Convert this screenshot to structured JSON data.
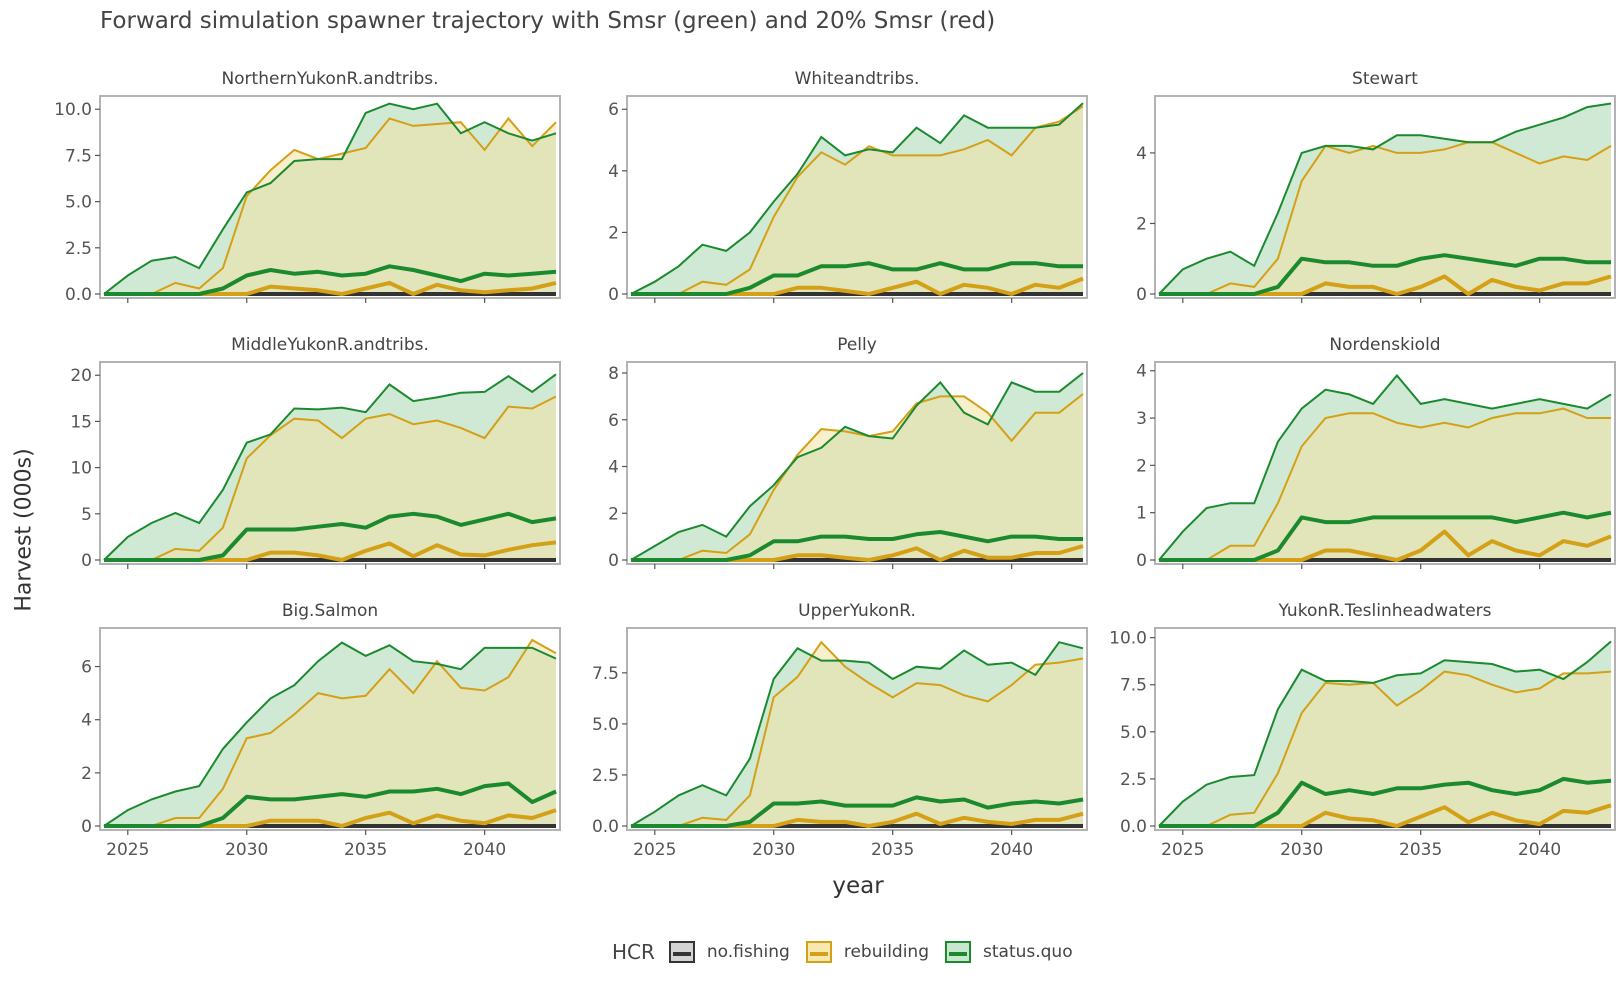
{
  "chart_data": {
    "type": "area",
    "title": "Forward simulation spawner trajectory with Smsr (green) and 20% Smsr (red)",
    "xlabel": "year",
    "ylabel": "Harvest (000s)",
    "x": [
      2024,
      2025,
      2026,
      2027,
      2028,
      2029,
      2030,
      2031,
      2032,
      2033,
      2034,
      2035,
      2036,
      2037,
      2038,
      2039,
      2040,
      2041,
      2042,
      2043
    ],
    "xticks": [
      2025,
      2030,
      2035,
      2040
    ],
    "xlim": [
      2024,
      2043
    ],
    "legend": {
      "title": "HCR",
      "position": "bottom",
      "items": [
        {
          "label": "no.fishing",
          "color": "#333333",
          "fill": "#d3d3d3"
        },
        {
          "label": "rebuilding",
          "color": "#d4a017",
          "fill": "#f7e7b0"
        },
        {
          "label": "status.quo",
          "color": "#1b8a2f",
          "fill": "#c9e6cf"
        }
      ]
    },
    "colors": {
      "no_fishing": "#333333",
      "rebuilding": "#d4a017",
      "status_quo": "#1b8a2f",
      "rebuilding_fill": "#f3e2a4",
      "status_quo_fill": "#bfe1c6",
      "panel_border": "#b3b3b3"
    },
    "panels": [
      {
        "name": "NorthernYukonR.andtribs.",
        "ylim": [
          0,
          10.5
        ],
        "yticks": [
          "0.0",
          "2.5",
          "5.0",
          "7.5",
          "10.0"
        ],
        "ytick_values": [
          0,
          2.5,
          5,
          7.5,
          10
        ],
        "status_quo_upper": [
          0,
          1,
          1.8,
          2,
          1.4,
          3.5,
          5.5,
          6,
          7.2,
          7.3,
          7.3,
          9.8,
          10.3,
          10,
          10.3,
          8.7,
          9.3,
          8.7,
          8.3,
          8.7
        ],
        "rebuilding_upper": [
          0,
          0,
          0,
          0.6,
          0.3,
          1.4,
          5.3,
          6.7,
          7.8,
          7.3,
          7.6,
          7.9,
          9.5,
          9.1,
          9.2,
          9.3,
          7.8,
          9.5,
          8,
          9.3
        ],
        "status_quo_median": [
          0,
          0,
          0,
          0,
          0,
          0.3,
          1,
          1.3,
          1.1,
          1.2,
          1,
          1.1,
          1.5,
          1.3,
          1,
          0.7,
          1.1,
          1,
          1.1,
          1.2
        ],
        "rebuilding_median": [
          0,
          0,
          0,
          0,
          0,
          0,
          0,
          0.4,
          0.3,
          0.2,
          0,
          0.3,
          0.6,
          0,
          0.5,
          0.2,
          0.1,
          0.2,
          0.3,
          0.6
        ]
      },
      {
        "name": "Whiteandtribs.",
        "ylim": [
          0,
          6.3
        ],
        "yticks": [
          "0",
          "2",
          "4",
          "6"
        ],
        "ytick_values": [
          0,
          2,
          4,
          6
        ],
        "status_quo_upper": [
          0,
          0.4,
          0.9,
          1.6,
          1.4,
          2,
          3,
          3.9,
          5.1,
          4.5,
          4.7,
          4.6,
          5.4,
          4.9,
          5.8,
          5.4,
          5.4,
          5.4,
          5.5,
          6.2
        ],
        "rebuilding_upper": [
          0,
          0,
          0,
          0.4,
          0.3,
          0.8,
          2.5,
          3.8,
          4.6,
          4.2,
          4.8,
          4.5,
          4.5,
          4.5,
          4.7,
          5,
          4.5,
          5.4,
          5.6,
          6.1
        ],
        "status_quo_median": [
          0,
          0,
          0,
          0,
          0,
          0.2,
          0.6,
          0.6,
          0.9,
          0.9,
          1,
          0.8,
          0.8,
          1,
          0.8,
          0.8,
          1,
          1,
          0.9,
          0.9
        ],
        "rebuilding_median": [
          0,
          0,
          0,
          0,
          0,
          0,
          0,
          0.2,
          0.2,
          0.1,
          0,
          0.2,
          0.4,
          0,
          0.3,
          0.2,
          0,
          0.3,
          0.2,
          0.5
        ]
      },
      {
        "name": "Stewart",
        "ylim": [
          0,
          5.5
        ],
        "yticks": [
          "0",
          "2",
          "4"
        ],
        "ytick_values": [
          0,
          2,
          4
        ],
        "status_quo_upper": [
          0,
          0.7,
          1,
          1.2,
          0.8,
          2.3,
          4,
          4.2,
          4.2,
          4.1,
          4.5,
          4.5,
          4.4,
          4.3,
          4.3,
          4.6,
          4.8,
          5,
          5.3,
          5.4
        ],
        "rebuilding_upper": [
          0,
          0,
          0,
          0.3,
          0.2,
          1,
          3.2,
          4.2,
          4,
          4.2,
          4,
          4,
          4.1,
          4.3,
          4.3,
          4,
          3.7,
          3.9,
          3.8,
          4.2
        ],
        "status_quo_median": [
          0,
          0,
          0,
          0,
          0,
          0.2,
          1,
          0.9,
          0.9,
          0.8,
          0.8,
          1,
          1.1,
          1,
          0.9,
          0.8,
          1,
          1,
          0.9,
          0.9
        ],
        "rebuilding_median": [
          0,
          0,
          0,
          0,
          0,
          0,
          0,
          0.3,
          0.2,
          0.2,
          0,
          0.2,
          0.5,
          0,
          0.4,
          0.2,
          0.1,
          0.3,
          0.3,
          0.5
        ]
      },
      {
        "name": "MiddleYukonR.andtribs.",
        "ylim": [
          0,
          21
        ],
        "yticks": [
          "0",
          "5",
          "10",
          "15",
          "20"
        ],
        "ytick_values": [
          0,
          5,
          10,
          15,
          20
        ],
        "status_quo_upper": [
          0,
          2.5,
          4,
          5.1,
          4,
          7.6,
          12.7,
          13.6,
          16.4,
          16.3,
          16.5,
          16,
          19,
          17.2,
          17.6,
          18.1,
          18.2,
          19.9,
          18.2,
          20.1
        ],
        "rebuilding_upper": [
          0,
          0,
          0,
          1.2,
          1,
          3.5,
          11,
          13.5,
          15.3,
          15.1,
          13.2,
          15.3,
          15.8,
          14.7,
          15.1,
          14.3,
          13.2,
          16.6,
          16.4,
          17.7
        ],
        "status_quo_median": [
          0,
          0,
          0,
          0,
          0,
          0.5,
          3.3,
          3.3,
          3.3,
          3.6,
          3.9,
          3.5,
          4.7,
          5,
          4.7,
          3.8,
          4.4,
          5,
          4.1,
          4.5
        ],
        "rebuilding_median": [
          0,
          0,
          0,
          0,
          0,
          0,
          0,
          0.8,
          0.8,
          0.5,
          0,
          1,
          1.8,
          0.4,
          1.6,
          0.6,
          0.5,
          1.1,
          1.6,
          1.9
        ]
      },
      {
        "name": "Pelly",
        "ylim": [
          0,
          8.3
        ],
        "yticks": [
          "0",
          "2",
          "4",
          "6",
          "8"
        ],
        "ytick_values": [
          0,
          2,
          4,
          6,
          8
        ],
        "status_quo_upper": [
          0,
          0.6,
          1.2,
          1.5,
          1,
          2.3,
          3.2,
          4.4,
          4.8,
          5.7,
          5.3,
          5.2,
          6.6,
          7.6,
          6.3,
          5.8,
          7.6,
          7.2,
          7.2,
          8
        ],
        "rebuilding_upper": [
          0,
          0,
          0,
          0.4,
          0.3,
          1.1,
          3,
          4.5,
          5.6,
          5.5,
          5.3,
          5.5,
          6.7,
          7,
          7,
          6.3,
          5.1,
          6.3,
          6.3,
          7.1
        ],
        "status_quo_median": [
          0,
          0,
          0,
          0,
          0,
          0.2,
          0.8,
          0.8,
          1,
          1,
          0.9,
          0.9,
          1.1,
          1.2,
          1,
          0.8,
          1,
          1,
          0.9,
          0.9
        ],
        "rebuilding_median": [
          0,
          0,
          0,
          0,
          0,
          0,
          0,
          0.2,
          0.2,
          0.1,
          0,
          0.2,
          0.5,
          0,
          0.4,
          0.1,
          0.1,
          0.3,
          0.3,
          0.6
        ]
      },
      {
        "name": "Nordenskiold",
        "ylim": [
          0,
          4.1
        ],
        "yticks": [
          "0",
          "1",
          "2",
          "3",
          "4"
        ],
        "ytick_values": [
          0,
          1,
          2,
          3,
          4
        ],
        "status_quo_upper": [
          0,
          0.6,
          1.1,
          1.2,
          1.2,
          2.5,
          3.2,
          3.6,
          3.5,
          3.3,
          3.9,
          3.3,
          3.4,
          3.3,
          3.2,
          3.3,
          3.4,
          3.3,
          3.2,
          3.5
        ],
        "rebuilding_upper": [
          0,
          0,
          0,
          0.3,
          0.3,
          1.2,
          2.4,
          3,
          3.1,
          3.1,
          2.9,
          2.8,
          2.9,
          2.8,
          3,
          3.1,
          3.1,
          3.2,
          3,
          3
        ],
        "status_quo_median": [
          0,
          0,
          0,
          0,
          0,
          0.2,
          0.9,
          0.8,
          0.8,
          0.9,
          0.9,
          0.9,
          0.9,
          0.9,
          0.9,
          0.8,
          0.9,
          1,
          0.9,
          1
        ],
        "rebuilding_median": [
          0,
          0,
          0,
          0,
          0,
          0,
          0,
          0.2,
          0.2,
          0.1,
          0,
          0.2,
          0.6,
          0.1,
          0.4,
          0.2,
          0.1,
          0.4,
          0.3,
          0.5
        ]
      },
      {
        "name": "Big.Salmon",
        "ylim": [
          0,
          7.3
        ],
        "yticks": [
          "0",
          "2",
          "4",
          "6"
        ],
        "ytick_values": [
          0,
          2,
          4,
          6
        ],
        "status_quo_upper": [
          0,
          0.6,
          1,
          1.3,
          1.5,
          2.9,
          3.9,
          4.8,
          5.3,
          6.2,
          6.9,
          6.4,
          6.8,
          6.2,
          6.1,
          5.9,
          6.7,
          6.7,
          6.7,
          6.3
        ],
        "rebuilding_upper": [
          0,
          0,
          0,
          0.3,
          0.3,
          1.4,
          3.3,
          3.5,
          4.2,
          5,
          4.8,
          4.9,
          5.9,
          5,
          6.2,
          5.2,
          5.1,
          5.6,
          7,
          6.5
        ],
        "status_quo_median": [
          0,
          0,
          0,
          0,
          0,
          0.3,
          1.1,
          1,
          1,
          1.1,
          1.2,
          1.1,
          1.3,
          1.3,
          1.4,
          1.2,
          1.5,
          1.6,
          0.9,
          1.3
        ],
        "rebuilding_median": [
          0,
          0,
          0,
          0,
          0,
          0,
          0,
          0.2,
          0.2,
          0.2,
          0,
          0.3,
          0.5,
          0.1,
          0.4,
          0.2,
          0.1,
          0.4,
          0.3,
          0.6
        ]
      },
      {
        "name": "UpperYukonR.",
        "ylim": [
          0,
          9.5
        ],
        "yticks": [
          "0.0",
          "2.5",
          "5.0",
          "7.5"
        ],
        "ytick_values": [
          0,
          2.5,
          5,
          7.5
        ],
        "status_quo_upper": [
          0,
          0.7,
          1.5,
          2,
          1.5,
          3.3,
          7.2,
          8.7,
          8.1,
          8.1,
          8,
          7.2,
          7.8,
          7.7,
          8.6,
          7.9,
          8,
          7.4,
          9,
          8.7
        ],
        "rebuilding_upper": [
          0,
          0,
          0,
          0.4,
          0.3,
          1.5,
          6.3,
          7.3,
          9,
          7.8,
          7,
          6.3,
          7,
          6.9,
          6.4,
          6.1,
          6.9,
          7.9,
          8,
          8.2
        ],
        "status_quo_median": [
          0,
          0,
          0,
          0,
          0,
          0.2,
          1.1,
          1.1,
          1.2,
          1,
          1,
          1,
          1.4,
          1.2,
          1.3,
          0.9,
          1.1,
          1.2,
          1.1,
          1.3
        ],
        "rebuilding_median": [
          0,
          0,
          0,
          0,
          0,
          0,
          0,
          0.3,
          0.2,
          0.2,
          0,
          0.2,
          0.6,
          0.1,
          0.4,
          0.2,
          0.1,
          0.3,
          0.3,
          0.6
        ]
      },
      {
        "name": "YukonR.Teslinheadwaters",
        "ylim": [
          0,
          10.3
        ],
        "yticks": [
          "0.0",
          "2.5",
          "5.0",
          "7.5",
          "10.0"
        ],
        "ytick_values": [
          0,
          2.5,
          5,
          7.5,
          10
        ],
        "status_quo_upper": [
          0,
          1.3,
          2.2,
          2.6,
          2.7,
          6.2,
          8.3,
          7.7,
          7.7,
          7.6,
          8,
          8.1,
          8.8,
          8.7,
          8.6,
          8.2,
          8.3,
          7.8,
          8.7,
          9.8
        ],
        "rebuilding_upper": [
          0,
          0,
          0,
          0.6,
          0.7,
          2.8,
          6,
          7.6,
          7.5,
          7.6,
          6.4,
          7.2,
          8.2,
          8,
          7.5,
          7.1,
          7.3,
          8.1,
          8.1,
          8.2
        ],
        "status_quo_median": [
          0,
          0,
          0,
          0,
          0,
          0.7,
          2.3,
          1.7,
          1.9,
          1.7,
          2,
          2,
          2.2,
          2.3,
          1.9,
          1.7,
          1.9,
          2.5,
          2.3,
          2.4
        ],
        "rebuilding_median": [
          0,
          0,
          0,
          0,
          0,
          0,
          0,
          0.7,
          0.4,
          0.3,
          0,
          0.5,
          1,
          0.2,
          0.7,
          0.3,
          0.1,
          0.8,
          0.7,
          1.1
        ]
      }
    ]
  }
}
